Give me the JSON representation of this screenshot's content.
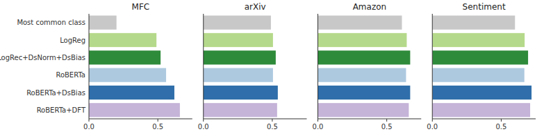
{
  "chart_data": [
    {
      "type": "bar",
      "orientation": "horizontal",
      "title": "MFC",
      "categories": [
        "Most common class",
        "LogReg",
        "LogRec+DsNorm+DsBias",
        "RoBERTa",
        "RoBERTa+DsBias",
        "RoBERTa+DFT"
      ],
      "values": [
        0.2,
        0.49,
        0.52,
        0.56,
        0.62,
        0.66
      ],
      "colors": [
        "#c8c8c8",
        "#b5d98a",
        "#2e8b3a",
        "#adc9e0",
        "#2f6eaa",
        "#c5b3d8"
      ],
      "xlim": [
        0.0,
        0.75
      ],
      "xticks": [
        {
          "value": 0.0,
          "label": "0.0"
        },
        0.5
      ],
      "grid": false
    },
    {
      "type": "bar",
      "orientation": "horizontal",
      "title": "arXiv",
      "categories": [
        "Most common class",
        "LogReg",
        "LogRec+DsNorm+DsBias",
        "RoBERTa",
        "RoBERTa+DsBias",
        "RoBERTa+DFT"
      ],
      "values": [
        0.49,
        0.505,
        0.525,
        0.505,
        0.54,
        0.535
      ],
      "colors": [
        "#c8c8c8",
        "#b5d98a",
        "#2e8b3a",
        "#adc9e0",
        "#2f6eaa",
        "#c5b3d8"
      ],
      "xlim": [
        0.0,
        0.75
      ],
      "xticks": [
        {
          "value": 0.0,
          "label": "0.0"
        },
        0.5
      ],
      "grid": false,
      "tick_labels": "x"
    },
    {
      "type": "bar",
      "orientation": "horizontal",
      "title": "Amazon",
      "categories": [
        "Most common class",
        "LogReg",
        "LogRec+DsNorm+DsBias",
        "RoBERTa",
        "RoBERTa+DsBias",
        "RoBERTa+DFT"
      ],
      "values": [
        0.61,
        0.645,
        0.67,
        0.64,
        0.67,
        0.66
      ],
      "colors": [
        "#c8c8c8",
        "#b5d98a",
        "#2e8b3a",
        "#adc9e0",
        "#2f6eaa",
        "#c5b3d8"
      ],
      "xlim": [
        0.0,
        0.75
      ],
      "xticks": [
        {
          "value": 0.0,
          "label": "0.0"
        },
        0.5
      ],
      "grid": false,
      "tick_labels": "x"
    },
    {
      "type": "bar",
      "orientation": "horizontal",
      "title": "Sentiment",
      "categories": [
        "Most common class",
        "LogReg",
        "LogRec+DsNorm+DsBias",
        "RoBERTa",
        "RoBERTa+DsBias",
        "RoBERTa+DFT"
      ],
      "values": [
        0.6,
        0.67,
        0.695,
        0.668,
        0.72,
        0.71
      ],
      "colors": [
        "#c8c8c8",
        "#b5d98a",
        "#2e8b3a",
        "#adc9e0",
        "#2f6eaa",
        "#c5b3d8"
      ],
      "xlim": [
        0.0,
        0.75
      ],
      "xticks": [
        {
          "value": 0.0,
          "label": "0.0"
        },
        0.5
      ],
      "grid": false,
      "tick_labels": "x"
    }
  ]
}
